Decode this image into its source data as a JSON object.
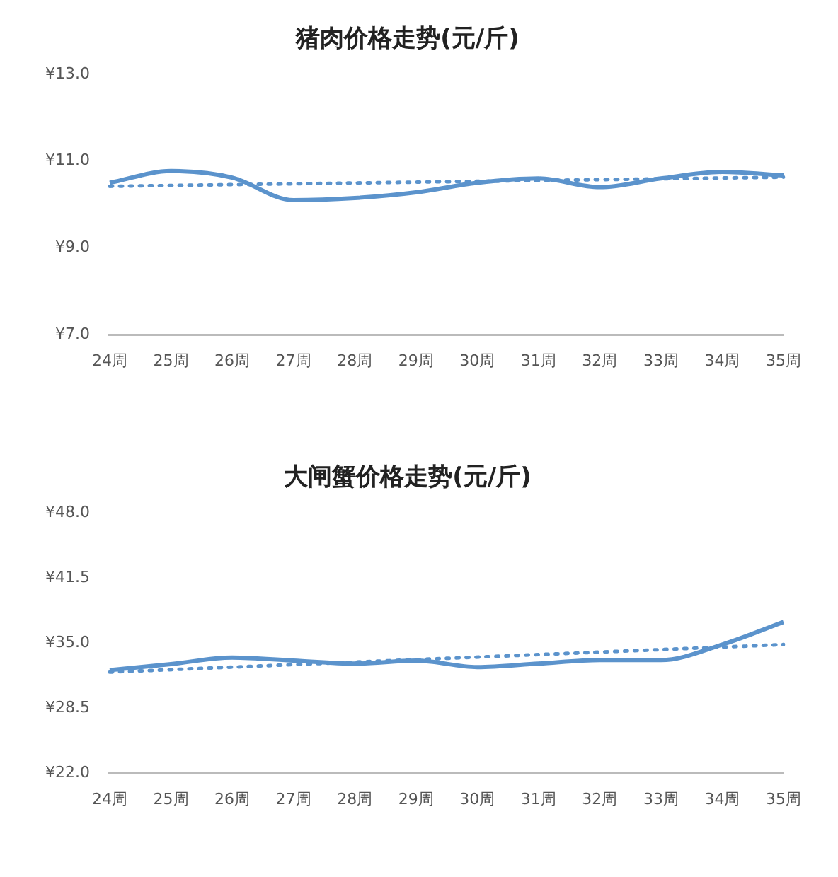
{
  "chart_data": [
    {
      "type": "line",
      "title": "猪肉价格走势(元/斤)",
      "categories": [
        "24周",
        "25周",
        "26周",
        "27周",
        "28周",
        "29周",
        "30周",
        "31周",
        "32周",
        "33周",
        "34周",
        "35周"
      ],
      "series": [
        {
          "color": "#5b93cc",
          "values": [
            10.5,
            10.77,
            10.62,
            10.1,
            10.15,
            10.28,
            10.5,
            10.6,
            10.4,
            10.6,
            10.75,
            10.67
          ]
        },
        {
          "color": "#5b93cc",
          "line_style": "dotted",
          "x": [
            "24周",
            "35周"
          ],
          "values": [
            10.42,
            10.63
          ]
        }
      ],
      "ylim": [
        7,
        13
      ],
      "yticks": [
        {
          "value": 7,
          "label": "¥7.0"
        },
        {
          "value": 9,
          "label": "¥9.0"
        },
        {
          "value": 11,
          "label": "¥11.0"
        },
        {
          "value": 13,
          "label": "¥13.0"
        }
      ],
      "grid": false,
      "legend": false,
      "marker": "none",
      "line_style": "solid"
    },
    {
      "type": "line",
      "title": "大闸蟹价格走势(元/斤)",
      "categories": [
        "24周",
        "25周",
        "26周",
        "27周",
        "28周",
        "29周",
        "30周",
        "31周",
        "32周",
        "33周",
        "34周",
        "35周"
      ],
      "series": [
        {
          "color": "#5b93cc",
          "values": [
            32.3,
            32.9,
            33.55,
            33.25,
            32.95,
            33.25,
            32.6,
            32.95,
            33.3,
            33.3,
            34.85,
            37.1
          ]
        },
        {
          "color": "#5b93cc",
          "line_style": "dotted",
          "x": [
            "24周",
            "35周"
          ],
          "values": [
            32.1,
            34.85
          ]
        }
      ],
      "ylim": [
        22,
        48
      ],
      "yticks": [
        {
          "value": 22,
          "label": "¥22.0"
        },
        {
          "value": 28.5,
          "label": "¥28.5"
        },
        {
          "value": 35,
          "label": "¥35.0"
        },
        {
          "value": 41.5,
          "label": "¥41.5"
        },
        {
          "value": 48,
          "label": "¥48.0"
        }
      ],
      "grid": false,
      "legend": false,
      "marker": "none",
      "line_style": "solid"
    }
  ]
}
